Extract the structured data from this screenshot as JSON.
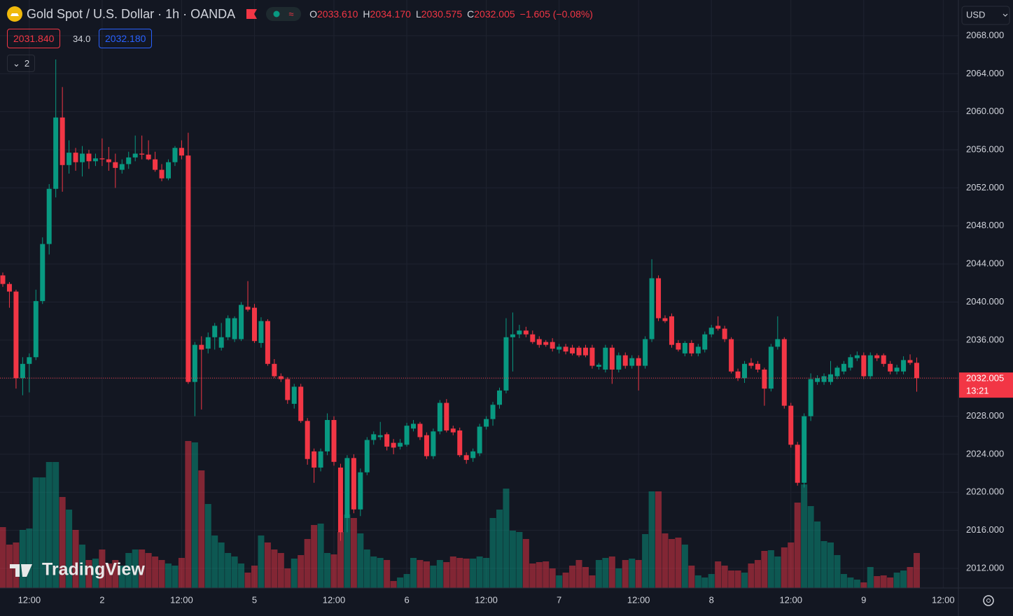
{
  "chart_data": {
    "type": "candlestick",
    "title": "Gold Spot / U.S. Dollar · 1h · OANDA",
    "header_fields": [
      "O",
      "H",
      "L",
      "C"
    ],
    "header_values": [
      "2033.610",
      "2034.170",
      "2030.575",
      "2032.005"
    ],
    "change": "−1.605 (−0.08%)",
    "bid": "2031.840",
    "spread": "34.0",
    "ask": "2032.180",
    "indicator_count": "2",
    "currency": "USD",
    "countdown": "13:21",
    "watermark": "TradingView",
    "up_color": "#089981",
    "down_color": "#f23645",
    "categories": [
      null,
      null,
      null,
      null,
      "12:00",
      null,
      null,
      null,
      null,
      null,
      null,
      null,
      null,
      null,
      null,
      "2",
      null,
      null,
      null,
      null,
      null,
      null,
      null,
      null,
      null,
      null,
      null,
      "12:00",
      null,
      null,
      null,
      null,
      null,
      null,
      null,
      null,
      null,
      null,
      "5",
      null,
      null,
      null,
      null,
      null,
      null,
      null,
      null,
      null,
      null,
      null,
      "12:00",
      null,
      null,
      null,
      null,
      null,
      null,
      null,
      null,
      null,
      null,
      "6",
      null,
      null,
      null,
      null,
      null,
      null,
      null,
      null,
      null,
      null,
      null,
      "12:00",
      null,
      null,
      null,
      null,
      null,
      null,
      null,
      null,
      null,
      null,
      "7",
      null,
      null,
      null,
      null,
      null,
      null,
      null,
      null,
      null,
      null,
      null,
      "12:00",
      null,
      null,
      null,
      null,
      null,
      null,
      null,
      null,
      null,
      null,
      "8",
      null,
      null,
      null,
      null,
      null,
      null,
      null,
      null,
      null,
      null,
      null,
      "12:00",
      null,
      null,
      null,
      null,
      null,
      null,
      null,
      null,
      null,
      null,
      "9",
      null,
      null,
      null,
      null,
      null,
      null,
      null,
      null,
      null,
      null,
      null,
      "12:00"
    ],
    "candles": [
      [
        2042.8,
        2043.1,
        2041.6,
        2041.9
      ],
      [
        2041.9,
        2042.1,
        2039.4,
        2041.1
      ],
      [
        2041.1,
        2041.3,
        2030.9,
        2032.0
      ],
      [
        2032.0,
        2034.2,
        2030.2,
        2033.5
      ],
      [
        2033.5,
        2034.6,
        2030.5,
        2034.2
      ],
      [
        2034.2,
        2041.3,
        2033.9,
        2040.1
      ],
      [
        2040.1,
        2046.8,
        2039.8,
        2046.1
      ],
      [
        2046.1,
        2052.4,
        2045.0,
        2051.9
      ],
      [
        2051.9,
        2065.5,
        2051.0,
        2059.4
      ],
      [
        2059.4,
        2062.6,
        2051.6,
        2054.4
      ],
      [
        2054.4,
        2057.0,
        2053.5,
        2055.7
      ],
      [
        2055.7,
        2056.2,
        2053.8,
        2054.7
      ],
      [
        2054.7,
        2056.4,
        2053.2,
        2055.6
      ],
      [
        2055.6,
        2056.0,
        2054.0,
        2054.8
      ],
      [
        2054.8,
        2055.6,
        2054.3,
        2055.1
      ],
      [
        2055.1,
        2057.2,
        2054.3,
        2055.0
      ],
      [
        2055.0,
        2056.3,
        2053.8,
        2054.7
      ],
      [
        2054.7,
        2055.6,
        2052.0,
        2054.1
      ],
      [
        2053.9,
        2055.0,
        2053.5,
        2054.5
      ],
      [
        2054.5,
        2055.8,
        2054.0,
        2055.2
      ],
      [
        2055.2,
        2057.5,
        2054.8,
        2055.6
      ],
      [
        2055.6,
        2057.5,
        2055.0,
        2055.5
      ],
      [
        2055.5,
        2057.0,
        2054.9,
        2055.0
      ],
      [
        2055.0,
        2055.8,
        2053.7,
        2053.9
      ],
      [
        2053.9,
        2054.5,
        2052.7,
        2053.0
      ],
      [
        2053.0,
        2055.0,
        2052.8,
        2054.7
      ],
      [
        2054.7,
        2056.4,
        2054.3,
        2056.2
      ],
      [
        2056.2,
        2057.0,
        2055.0,
        2055.4
      ],
      [
        2055.4,
        2057.8,
        2031.4,
        2031.6
      ],
      [
        2031.6,
        2035.8,
        2028.0,
        2035.5
      ],
      [
        2035.5,
        2036.4,
        2028.7,
        2035.0
      ],
      [
        2035.1,
        2036.8,
        2034.6,
        2036.3
      ],
      [
        2036.3,
        2037.8,
        2035.0,
        2037.5
      ],
      [
        2035.2,
        2037.8,
        2034.9,
        2036.3
      ],
      [
        2036.3,
        2038.6,
        2036.0,
        2038.3
      ],
      [
        2036.1,
        2038.5,
        2035.8,
        2038.3
      ],
      [
        2036.1,
        2040.0,
        2035.9,
        2039.7
      ],
      [
        2039.5,
        2042.2,
        2039.0,
        2039.2
      ],
      [
        2039.4,
        2039.8,
        2035.7,
        2035.9
      ],
      [
        2035.7,
        2038.4,
        2035.2,
        2038.0
      ],
      [
        2038.0,
        2038.2,
        2033.3,
        2033.5
      ],
      [
        2033.5,
        2034.0,
        2032.0,
        2032.2
      ],
      [
        2032.2,
        2032.5,
        2031.6,
        2031.9
      ],
      [
        2031.9,
        2032.1,
        2029.3,
        2029.7
      ],
      [
        2029.3,
        2031.4,
        2028.8,
        2031.1
      ],
      [
        2031.1,
        2031.4,
        2027.3,
        2027.5
      ],
      [
        2027.5,
        2027.8,
        2022.9,
        2023.5
      ],
      [
        2024.3,
        2024.6,
        2021.0,
        2022.6
      ],
      [
        2022.6,
        2024.6,
        2022.2,
        2024.3
      ],
      [
        2024.3,
        2028.3,
        2023.9,
        2027.6
      ],
      [
        2027.6,
        2028.0,
        2022.8,
        2023.2
      ],
      [
        2022.6,
        2023.0,
        2014.9,
        2015.8
      ],
      [
        2017.3,
        2023.9,
        2015.8,
        2023.6
      ],
      [
        2023.6,
        2024.0,
        2017.8,
        2018.2
      ],
      [
        2018.2,
        2022.5,
        2017.5,
        2022.1
      ],
      [
        2022.1,
        2025.8,
        2021.8,
        2025.5
      ],
      [
        2025.5,
        2026.4,
        2025.0,
        2026.1
      ],
      [
        2025.8,
        2027.4,
        2025.5,
        2026.0
      ],
      [
        2026.1,
        2026.3,
        2024.4,
        2024.8
      ],
      [
        2025.2,
        2025.6,
        2024.0,
        2024.7
      ],
      [
        2024.8,
        2025.6,
        2024.5,
        2025.2
      ],
      [
        2025.0,
        2027.3,
        2024.8,
        2027.0
      ],
      [
        2026.7,
        2027.6,
        2026.4,
        2027.2
      ],
      [
        2027.2,
        2027.4,
        2025.5,
        2025.8
      ],
      [
        2026.0,
        2026.3,
        2023.5,
        2023.8
      ],
      [
        2023.8,
        2026.7,
        2023.5,
        2026.4
      ],
      [
        2026.4,
        2029.7,
        2026.1,
        2029.4
      ],
      [
        2029.4,
        2029.8,
        2026.3,
        2026.5
      ],
      [
        2026.7,
        2027.0,
        2026.0,
        2026.3
      ],
      [
        2026.5,
        2026.8,
        2023.7,
        2023.9
      ],
      [
        2023.9,
        2024.2,
        2023.0,
        2023.4
      ],
      [
        2023.6,
        2024.6,
        2023.2,
        2024.3
      ],
      [
        2024.1,
        2027.2,
        2023.8,
        2026.9
      ],
      [
        2026.9,
        2028.0,
        2026.6,
        2027.7
      ],
      [
        2027.7,
        2029.5,
        2027.0,
        2029.2
      ],
      [
        2029.2,
        2031.0,
        2028.8,
        2030.7
      ],
      [
        2030.7,
        2038.3,
        2030.4,
        2036.3
      ],
      [
        2036.3,
        2038.9,
        2032.7,
        2036.6
      ],
      [
        2036.6,
        2037.6,
        2036.2,
        2037.0
      ],
      [
        2037.0,
        2037.4,
        2036.3,
        2036.6
      ],
      [
        2036.6,
        2037.0,
        2035.6,
        2035.8
      ],
      [
        2036.1,
        2036.4,
        2035.2,
        2035.5
      ],
      [
        2035.8,
        2036.0,
        2035.3,
        2035.5
      ],
      [
        2035.8,
        2036.2,
        2034.8,
        2035.1
      ],
      [
        2035.0,
        2035.6,
        2034.6,
        2035.3
      ],
      [
        2035.3,
        2035.6,
        2034.5,
        2034.8
      ],
      [
        2035.2,
        2035.5,
        2034.4,
        2034.6
      ],
      [
        2035.2,
        2035.4,
        2034.2,
        2034.4
      ],
      [
        2035.2,
        2035.5,
        2034.2,
        2034.4
      ],
      [
        2035.2,
        2035.5,
        2033.0,
        2033.3
      ],
      [
        2033.2,
        2033.6,
        2032.9,
        2033.4
      ],
      [
        2032.9,
        2035.5,
        2032.6,
        2035.2
      ],
      [
        2035.2,
        2035.5,
        2031.4,
        2032.9
      ],
      [
        2032.9,
        2034.7,
        2032.6,
        2034.4
      ],
      [
        2034.4,
        2034.7,
        2033.0,
        2033.3
      ],
      [
        2033.3,
        2034.4,
        2033.0,
        2034.1
      ],
      [
        2034.1,
        2034.4,
        2030.7,
        2033.3
      ],
      [
        2033.3,
        2036.4,
        2033.0,
        2036.1
      ],
      [
        2036.1,
        2044.5,
        2035.8,
        2042.5
      ],
      [
        2042.5,
        2042.8,
        2038.0,
        2038.3
      ],
      [
        2038.3,
        2038.6,
        2037.8,
        2038.0
      ],
      [
        2038.5,
        2038.8,
        2035.2,
        2035.5
      ],
      [
        2035.7,
        2036.0,
        2034.8,
        2035.0
      ],
      [
        2034.6,
        2035.9,
        2034.3,
        2035.7
      ],
      [
        2035.7,
        2036.0,
        2034.3,
        2034.6
      ],
      [
        2034.6,
        2035.6,
        2034.3,
        2035.3
      ],
      [
        2035.0,
        2036.9,
        2034.7,
        2036.6
      ],
      [
        2036.6,
        2037.6,
        2036.3,
        2037.3
      ],
      [
        2037.5,
        2038.5,
        2037.0,
        2037.2
      ],
      [
        2037.2,
        2037.5,
        2035.8,
        2036.1
      ],
      [
        2036.1,
        2036.3,
        2032.5,
        2032.7
      ],
      [
        2032.7,
        2033.0,
        2031.7,
        2032.0
      ],
      [
        2032.0,
        2033.8,
        2031.5,
        2033.5
      ],
      [
        2033.6,
        2034.1,
        2033.0,
        2033.3
      ],
      [
        2033.5,
        2033.8,
        2032.6,
        2032.9
      ],
      [
        2032.9,
        2033.1,
        2029.1,
        2030.9
      ],
      [
        2030.9,
        2035.6,
        2030.6,
        2035.3
      ],
      [
        2035.3,
        2038.5,
        2035.0,
        2036.1
      ],
      [
        2036.1,
        2036.3,
        2028.8,
        2029.1
      ],
      [
        2029.1,
        2029.4,
        2024.7,
        2025.0
      ],
      [
        2025.0,
        2025.3,
        2020.7,
        2021.0
      ],
      [
        2021.0,
        2028.3,
        2020.5,
        2028.0
      ],
      [
        2028.0,
        2032.5,
        2027.5,
        2031.9
      ],
      [
        2031.6,
        2032.3,
        2031.3,
        2032.0
      ],
      [
        2031.6,
        2032.5,
        2031.3,
        2032.2
      ],
      [
        2031.6,
        2033.8,
        2031.3,
        2032.4
      ],
      [
        2032.2,
        2033.3,
        2031.9,
        2033.1
      ],
      [
        2032.7,
        2033.8,
        2032.4,
        2033.5
      ],
      [
        2033.1,
        2034.5,
        2032.8,
        2034.2
      ],
      [
        2034.1,
        2034.8,
        2033.8,
        2034.4
      ],
      [
        2034.4,
        2034.7,
        2031.9,
        2032.2
      ],
      [
        2032.2,
        2034.7,
        2031.9,
        2034.4
      ],
      [
        2034.4,
        2034.6,
        2033.8,
        2034.1
      ],
      [
        2034.4,
        2034.6,
        2033.2,
        2033.5
      ],
      [
        2033.5,
        2033.8,
        2032.4,
        2032.7
      ],
      [
        2032.7,
        2033.4,
        2032.4,
        2033.1
      ],
      [
        2032.7,
        2034.3,
        2032.4,
        2033.9
      ],
      [
        2033.9,
        2034.5,
        2033.4,
        2033.61
      ],
      [
        2033.61,
        2034.17,
        2030.575,
        2032.005
      ],
      null,
      null,
      null,
      null
    ],
    "volume": [
      87,
      62,
      65,
      83,
      85,
      158,
      158,
      180,
      180,
      130,
      112,
      83,
      62,
      40,
      42,
      55,
      35,
      40,
      32,
      50,
      55,
      55,
      50,
      45,
      40,
      35,
      32,
      43,
      210,
      208,
      168,
      120,
      75,
      65,
      50,
      45,
      35,
      22,
      32,
      75,
      65,
      55,
      50,
      28,
      42,
      47,
      70,
      90,
      92,
      50,
      48,
      80,
      105,
      100,
      78,
      55,
      45,
      43,
      40,
      10,
      15,
      20,
      43,
      40,
      38,
      32,
      40,
      37,
      45,
      43,
      42,
      42,
      45,
      43,
      100,
      112,
      142,
      82,
      80,
      70,
      35,
      37,
      38,
      28,
      18,
      22,
      32,
      40,
      30,
      18,
      40,
      43,
      45,
      28,
      40,
      42,
      40,
      77,
      138,
      138,
      78,
      70,
      72,
      62,
      32,
      18,
      15,
      20,
      38,
      32,
      25,
      25,
      22,
      35,
      40,
      53,
      54,
      45,
      58,
      65,
      122,
      148,
      117,
      95,
      67,
      65,
      47,
      20,
      15,
      12,
      8,
      30,
      17,
      18,
      15,
      22,
      25,
      30,
      50,
      null,
      null,
      null,
      null
    ],
    "vlim": [
      0,
      250
    ],
    "ylim": [
      2009.94,
      2071.75
    ],
    "yticks": [
      {
        "value": 2012,
        "label": "2012.000"
      },
      {
        "value": 2016,
        "label": "2016.000"
      },
      {
        "value": 2020,
        "label": "2020.000"
      },
      {
        "value": 2024,
        "label": "2024.000"
      },
      {
        "value": 2028,
        "label": "2028.000"
      },
      {
        "value": 2032,
        "label": "2032.000"
      },
      {
        "value": 2036,
        "label": "2036.000"
      },
      {
        "value": 2040,
        "label": "2040.000"
      },
      {
        "value": 2044,
        "label": "2044.000"
      },
      {
        "value": 2048,
        "label": "2048.000"
      },
      {
        "value": 2052,
        "label": "2052.000"
      },
      {
        "value": 2056,
        "label": "2056.000"
      },
      {
        "value": 2060,
        "label": "2060.000"
      },
      {
        "value": 2064,
        "label": "2064.000"
      },
      {
        "value": 2068,
        "label": "2068.000"
      }
    ],
    "grid": true
  }
}
